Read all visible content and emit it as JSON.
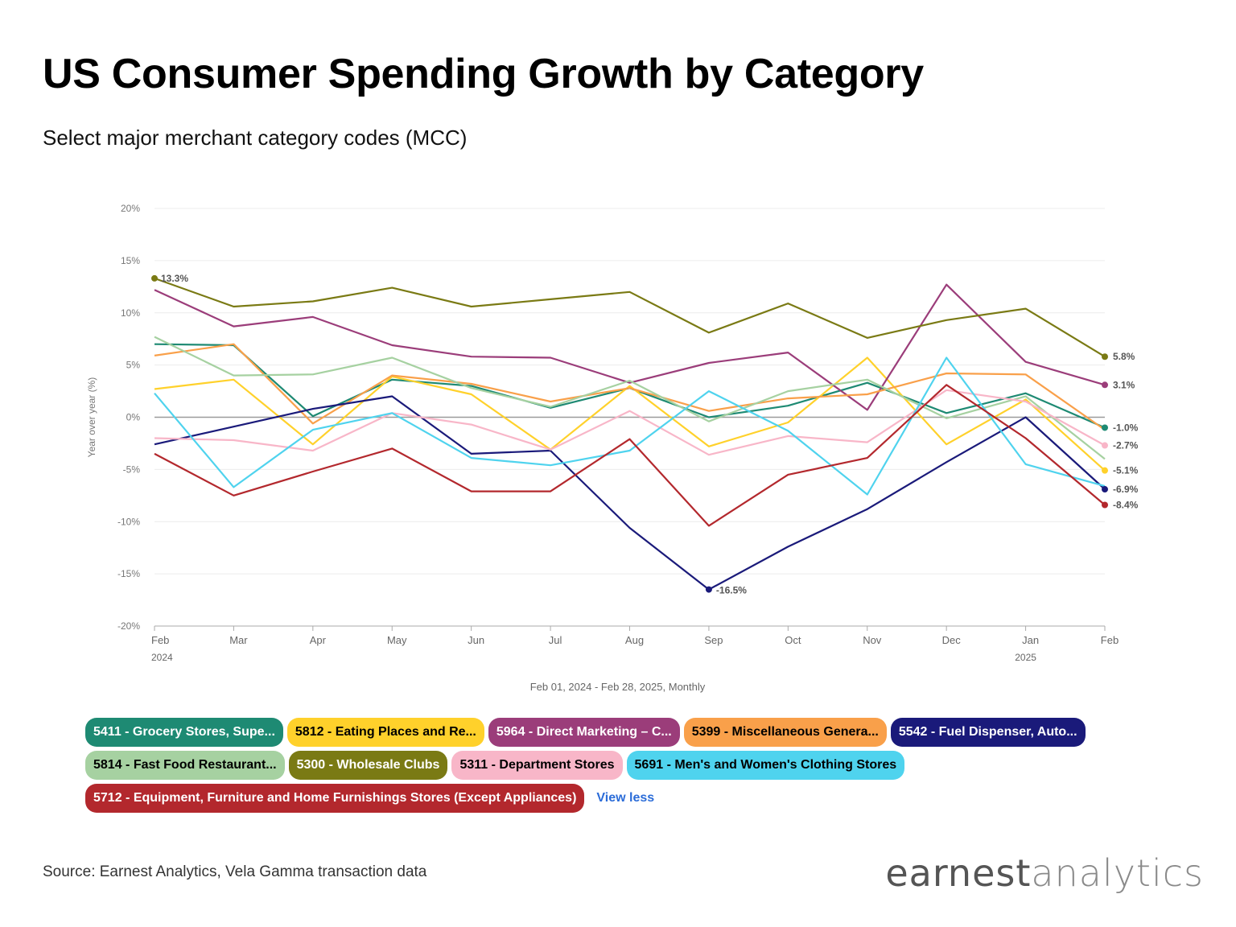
{
  "header": {
    "title": "US Consumer Spending Growth by Category",
    "subtitle": "Select major merchant category codes (MCC)"
  },
  "chart_data": {
    "type": "line",
    "title": "US Consumer Spending Growth by Category",
    "subtitle": "Select major merchant category codes (MCC)",
    "xlabel": "Feb 01, 2024 - Feb 28, 2025, Monthly",
    "ylabel": "Year over year (%)",
    "ylim": [
      -20,
      20
    ],
    "yticks": [
      -20,
      -15,
      -10,
      -5,
      0,
      5,
      10,
      15,
      20
    ],
    "ytick_labels": [
      "-20%",
      "-15%",
      "-10%",
      "-5%",
      "0%",
      "5%",
      "10%",
      "15%",
      "20%"
    ],
    "categories": [
      "Feb",
      "Mar",
      "Apr",
      "May",
      "Jun",
      "Jul",
      "Aug",
      "Sep",
      "Oct",
      "Nov",
      "Dec",
      "Jan",
      "Feb"
    ],
    "year_labels": [
      {
        "index": 0,
        "label": "2024"
      },
      {
        "index": 11,
        "label": "2025"
      }
    ],
    "grid": true,
    "legend_position": "bottom",
    "series": [
      {
        "name": "5411 - Grocery Stores, Supe...",
        "color": "#1e8a73",
        "text_color": "#ffffff",
        "end_label": "-1.0%",
        "values": [
          7.0,
          6.9,
          0.1,
          3.6,
          3.0,
          0.9,
          2.8,
          0.0,
          1.1,
          3.3,
          0.4,
          2.3,
          -1.0
        ]
      },
      {
        "name": "5812 - Eating Places and Re...",
        "color": "#ffd12b",
        "text_color": "#000000",
        "end_label": "-5.1%",
        "values": [
          2.7,
          3.6,
          -2.6,
          3.9,
          2.2,
          -3.1,
          3.0,
          -2.8,
          -0.5,
          5.7,
          -2.6,
          1.7,
          -5.1
        ]
      },
      {
        "name": "5964 - Direct Marketing – C...",
        "color": "#9b3d7a",
        "text_color": "#ffffff",
        "end_label": "3.1%",
        "values": [
          12.2,
          8.7,
          9.6,
          6.9,
          5.8,
          5.7,
          3.3,
          5.2,
          6.2,
          0.7,
          12.7,
          5.3,
          3.1
        ]
      },
      {
        "name": "5399 - Miscellaneous Genera...",
        "color": "#f9a04a",
        "text_color": "#000000",
        "end_label": "",
        "values": [
          5.9,
          7.0,
          -0.6,
          4.0,
          3.2,
          1.5,
          2.8,
          0.6,
          1.8,
          2.2,
          4.2,
          4.1,
          -1.2
        ]
      },
      {
        "name": "5542 - Fuel Dispenser, Auto...",
        "color": "#1a1a7a",
        "text_color": "#ffffff",
        "end_label": "-6.9%",
        "values": [
          -2.6,
          -0.9,
          0.8,
          2.0,
          -3.5,
          -3.2,
          -10.6,
          -16.5,
          -12.4,
          -8.8,
          -4.3,
          0.0,
          -6.9
        ]
      },
      {
        "name": "5814 - Fast Food Restaurant...",
        "color": "#a6d1a1",
        "text_color": "#000000",
        "end_label": "",
        "values": [
          7.7,
          4.0,
          4.1,
          5.7,
          2.8,
          1.0,
          3.5,
          -0.4,
          2.5,
          3.6,
          -0.1,
          2.0,
          -4.0
        ]
      },
      {
        "name": "5300 - Wholesale Clubs",
        "color": "#7a7a14",
        "text_color": "#ffffff",
        "end_label": "5.8%",
        "start_label": "13.3%",
        "values": [
          13.3,
          10.6,
          11.1,
          12.4,
          10.6,
          11.3,
          12.0,
          8.1,
          10.9,
          7.6,
          9.3,
          10.4,
          5.8
        ]
      },
      {
        "name": "5311 - Department Stores",
        "color": "#f8b6c8",
        "text_color": "#000000",
        "end_label": "-2.7%",
        "values": [
          -2.0,
          -2.2,
          -3.2,
          0.4,
          -0.7,
          -3.1,
          0.6,
          -3.6,
          -1.8,
          -2.4,
          2.6,
          1.5,
          -2.7
        ]
      },
      {
        "name": "5691 - Men's and Women's Clothing Stores",
        "color": "#4fd3ee",
        "text_color": "#000000",
        "end_label": "",
        "values": [
          2.3,
          -6.7,
          -1.2,
          0.4,
          -3.9,
          -4.6,
          -3.2,
          2.5,
          -1.3,
          -7.4,
          5.7,
          -4.5,
          -6.6
        ]
      },
      {
        "name": "5712 - Equipment, Furniture and Home Furnishings Stores (Except Appliances)",
        "color": "#b3282d",
        "text_color": "#ffffff",
        "end_label": "-8.4%",
        "values": [
          -3.5,
          -7.5,
          -5.2,
          -3.0,
          -7.1,
          -7.1,
          -2.1,
          -10.4,
          -5.5,
          -3.9,
          3.1,
          -2.0,
          -8.4
        ]
      }
    ],
    "min_label": {
      "series": 4,
      "index": 7,
      "label": "-16.5%"
    },
    "legend_rows": [
      [
        0,
        1,
        2,
        3,
        4
      ],
      [
        5,
        6,
        7,
        8
      ],
      [
        9
      ]
    ]
  },
  "legend": {
    "view_less_label": "View less"
  },
  "footer": {
    "source": "Source: Earnest Analytics, Vela Gamma transaction data",
    "logo_bold": "earnest",
    "logo_light": "analytics"
  }
}
